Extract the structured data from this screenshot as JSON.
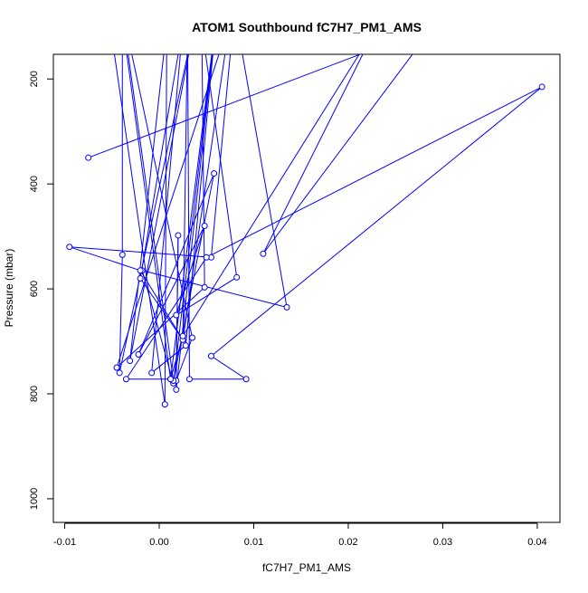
{
  "chart_data": {
    "type": "line",
    "title": "ATOM1 Southbound fC7H7_PM1_AMS",
    "xlabel": "fC7H7_PM1_AMS",
    "ylabel": "Pressure (mbar)",
    "xlim": [
      -0.0112,
      0.0424
    ],
    "ylim": [
      1045,
      153
    ],
    "y_reversed": true,
    "grid": false,
    "legend": "none",
    "x_ticks": [
      {
        "value": -0.01,
        "label": "-0.01"
      },
      {
        "value": 0.0,
        "label": "0.00"
      },
      {
        "value": 0.01,
        "label": "0.01"
      },
      {
        "value": 0.02,
        "label": "0.02"
      },
      {
        "value": 0.03,
        "label": "0.03"
      },
      {
        "value": 0.04,
        "label": "0.04"
      }
    ],
    "y_ticks": [
      {
        "value": 200,
        "label": "200"
      },
      {
        "value": 400,
        "label": "400"
      },
      {
        "value": 600,
        "label": "600"
      },
      {
        "value": 800,
        "label": "800"
      },
      {
        "value": 1000,
        "label": "1000"
      }
    ],
    "series": [
      {
        "color": "#0000ff",
        "marker": "circle-open",
        "points": [
          {
            "x": -0.005,
            "y": 120
          },
          {
            "x": 0.0006,
            "y": 820
          },
          {
            "x": 0.0008,
            "y": 100
          },
          {
            "x": -0.0031,
            "y": 737
          },
          {
            "x": 0.004,
            "y": 70
          },
          {
            "x": -0.0042,
            "y": 760
          },
          {
            "x": -0.0039,
            "y": 535
          },
          {
            "x": -0.0039,
            "y": 90
          },
          {
            "x": 0.0012,
            "y": 772
          },
          {
            "x": 0.006,
            "y": 90
          },
          {
            "x": 0.0015,
            "y": 780
          },
          {
            "x": -0.0018,
            "y": 565
          },
          {
            "x": 0.0135,
            "y": 635
          },
          {
            "x": 0.0078,
            "y": 50
          },
          {
            "x": 0.0025,
            "y": 697
          },
          {
            "x": -0.002,
            "y": 580
          },
          {
            "x": 0.0025,
            "y": 100
          },
          {
            "x": -0.0008,
            "y": 760
          },
          {
            "x": 0.0028,
            "y": 708
          },
          {
            "x": 0.006,
            "y": 90
          },
          {
            "x": 0.0018,
            "y": 792
          },
          {
            "x": 0.002,
            "y": 498
          },
          {
            "x": 0.0018,
            "y": 775
          },
          {
            "x": 0.0035,
            "y": 693
          },
          {
            "x": -0.004,
            "y": 60
          },
          {
            "x": 0.0015,
            "y": 775
          },
          {
            "x": 0.0058,
            "y": 380
          },
          {
            "x": -0.0022,
            "y": 725
          },
          {
            "x": 0.0048,
            "y": 480
          },
          {
            "x": 0.0018,
            "y": 650
          },
          {
            "x": 0.0082,
            "y": 578
          },
          {
            "x": 0.0045,
            "y": 100
          },
          {
            "x": 0.0048,
            "y": 597
          },
          {
            "x": -0.0045,
            "y": 750
          },
          {
            "x": 0.008,
            "y": 60
          },
          {
            "x": 0.0055,
            "y": 540
          },
          {
            "x": -0.0095,
            "y": 520
          },
          {
            "x": -0.002,
            "y": 565
          },
          {
            "x": 0.0025,
            "y": 697
          },
          {
            "x": 0.003,
            "y": 100
          },
          {
            "x": 0.0032,
            "y": 772
          },
          {
            "x": 0.0092,
            "y": 772
          },
          {
            "x": 0.0055,
            "y": 728
          },
          {
            "x": 0.0405,
            "y": 215
          },
          {
            "x": 0.005,
            "y": 540
          },
          {
            "x": -0.0035,
            "y": 772
          },
          {
            "x": 0.0012,
            "y": 772
          },
          {
            "x": 0.0025,
            "y": 690
          },
          {
            "x": 0.023,
            "y": 100
          },
          {
            "x": 0.011,
            "y": 533
          },
          {
            "x": 0.029,
            "y": 100
          },
          {
            "x": -0.0075,
            "y": 350
          }
        ]
      }
    ]
  }
}
